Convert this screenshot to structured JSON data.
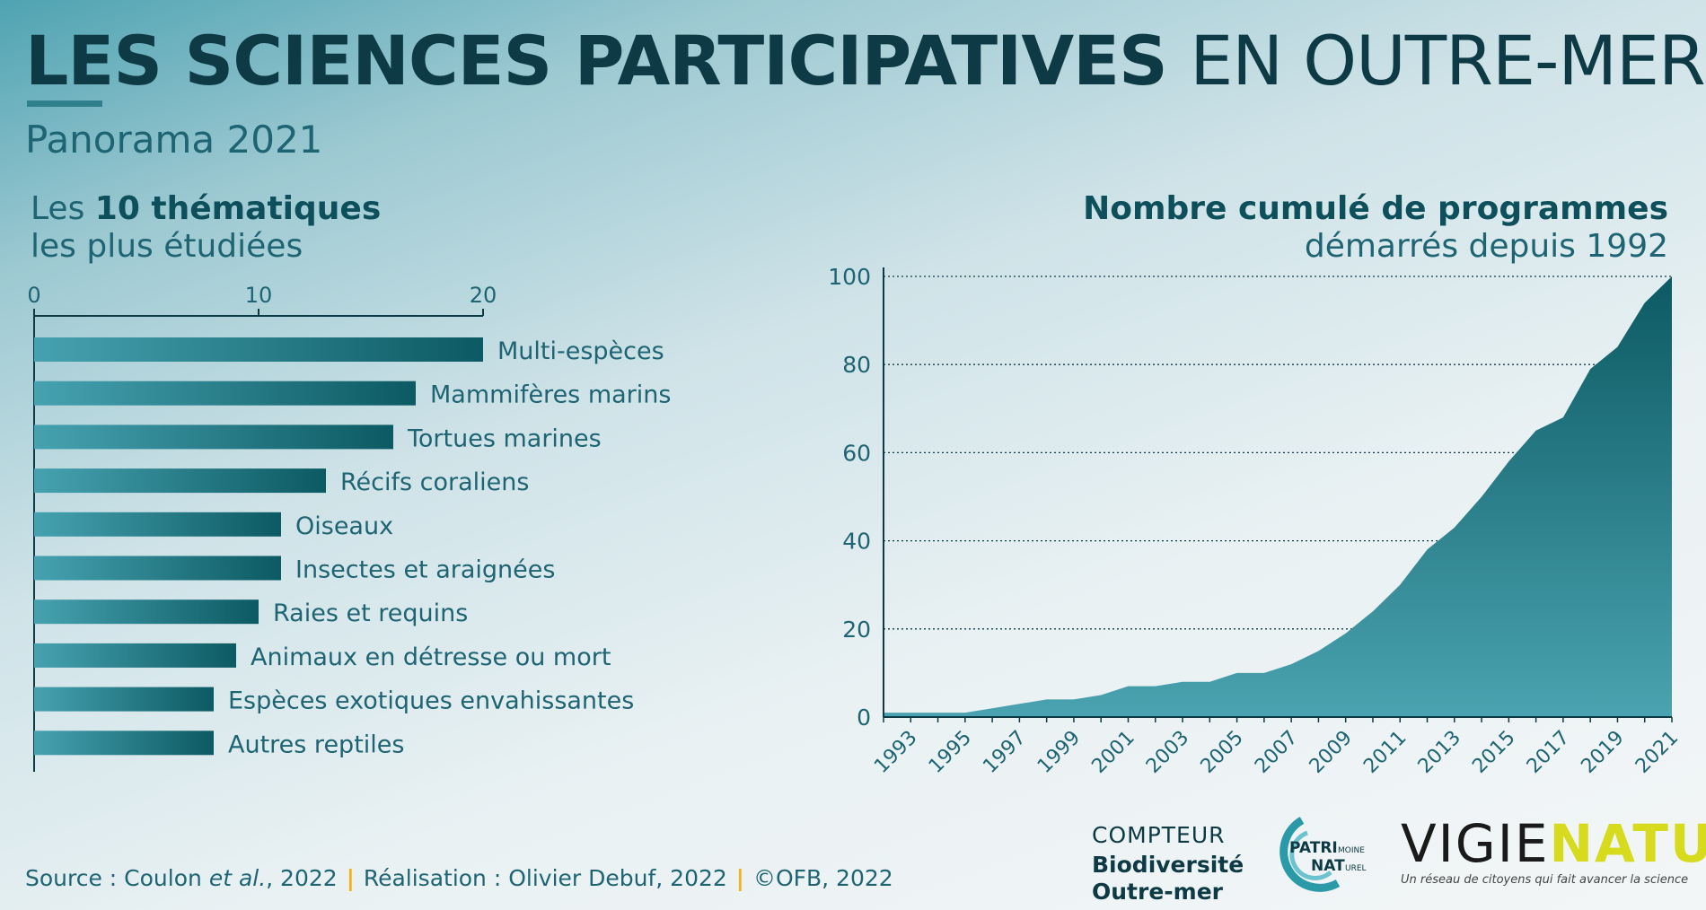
{
  "header": {
    "title_bold": "LES SCIENCES PARTICIPATIVES",
    "title_light": "EN OUTRE-MER",
    "subtitle": "Panorama 2021"
  },
  "footer": {
    "source_prefix": "Source : Coulon ",
    "source_italic": "et al.",
    "source_suffix": ", 2022",
    "realisation": "Réalisation : Olivier Debuf, 2022",
    "copyright": "©OFB, 2022",
    "separator": "|"
  },
  "logos": {
    "compteur": {
      "line1": "COMPTEUR",
      "line2": "Biodiversité",
      "line3": "Outre-mer"
    },
    "patrimoine": {
      "part1": "PATRI",
      "part2": "MOINE",
      "part3": "NAT",
      "part4": "UREL"
    },
    "vigie": {
      "part1": "VIGIE",
      "part2": "NATURE",
      "tagline": "Un réseau de citoyens qui fait avancer la science"
    }
  },
  "colors": {
    "bar_start": "#46a2b0",
    "bar_end": "#0c5a63",
    "area_top": "#0c5a63",
    "area_bottom": "#4aa3b0",
    "text_dark": "#0d3a44",
    "accent_yellow": "#f2b318"
  },
  "chart_data": [
    {
      "type": "bar",
      "orientation": "horizontal",
      "title_prefix": "Les ",
      "title_bold": "10 thématiques",
      "title_line2": "les plus étudiées",
      "categories": [
        "Multi-espèces",
        "Mammifères marins",
        "Tortues marines",
        "Récifs coraliens",
        "Oiseaux",
        "Insectes et araignées",
        "Raies et requins",
        "Animaux en détresse ou mort",
        "Espèces exotiques envahissantes",
        "Autres reptiles"
      ],
      "values": [
        20,
        17,
        16,
        13,
        11,
        11,
        10,
        9,
        8,
        8
      ],
      "xlim": [
        0,
        20
      ],
      "xticks": [
        0,
        10,
        20
      ],
      "axis_position": "top"
    },
    {
      "type": "area",
      "title_bold": "Nombre cumulé de programmes",
      "title_line2": "démarrés depuis 1992",
      "x": [
        1992,
        1993,
        1994,
        1995,
        1996,
        1997,
        1998,
        1999,
        2000,
        2001,
        2002,
        2003,
        2004,
        2005,
        2006,
        2007,
        2008,
        2009,
        2010,
        2011,
        2012,
        2013,
        2014,
        2015,
        2016,
        2017,
        2018,
        2019,
        2020,
        2021
      ],
      "y": [
        1,
        1,
        1,
        1,
        2,
        3,
        4,
        4,
        5,
        7,
        7,
        8,
        8,
        10,
        10,
        12,
        15,
        19,
        24,
        30,
        38,
        43,
        50,
        58,
        65,
        68,
        79,
        84,
        94,
        100
      ],
      "xticks": [
        1993,
        1995,
        1997,
        1999,
        2001,
        2003,
        2005,
        2007,
        2009,
        2011,
        2013,
        2015,
        2017,
        2019,
        2021
      ],
      "yticks": [
        0,
        20,
        40,
        60,
        80,
        100
      ],
      "ylim": [
        0,
        100
      ],
      "grid": "horizontal dotted"
    }
  ]
}
